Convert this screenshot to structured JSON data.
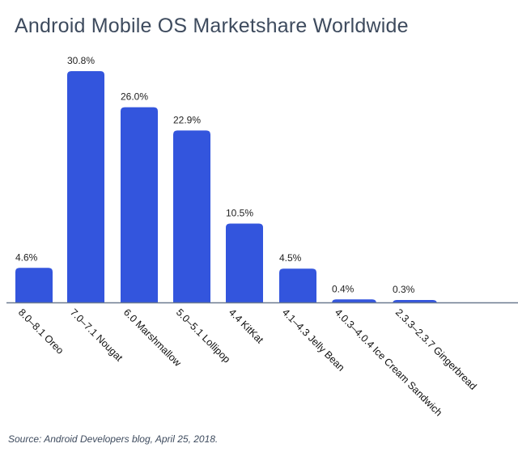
{
  "chart_data": {
    "type": "bar",
    "title": "Android Mobile OS Marketshare Worldwide",
    "categories": [
      "8.0–8.1 Oreo",
      "7.0–7.1 Nougat",
      "6.0 Marshmallow",
      "5.0–5.1 Lollipop",
      "4.4 KitKat",
      "4.1–4.3 Jelly Bean",
      "4.0.3–4.0.4 Ice Cream Sandwich",
      "2.3.3–2.3.7 Gingerbread"
    ],
    "values": [
      4.6,
      30.8,
      26.0,
      22.9,
      10.5,
      4.5,
      0.4,
      0.3
    ],
    "data_labels": [
      "4.6%",
      "30.8%",
      "26.0%",
      "22.9%",
      "10.5%",
      "4.5%",
      "0.4%",
      "0.3%"
    ],
    "xlabel": "",
    "ylabel": "",
    "ylim": [
      0,
      30.8
    ],
    "grid": false,
    "bar_color": "#3355dd",
    "axis_color": "#6b7a90",
    "source": "Source: Android Developers blog, April 25, 2018."
  }
}
